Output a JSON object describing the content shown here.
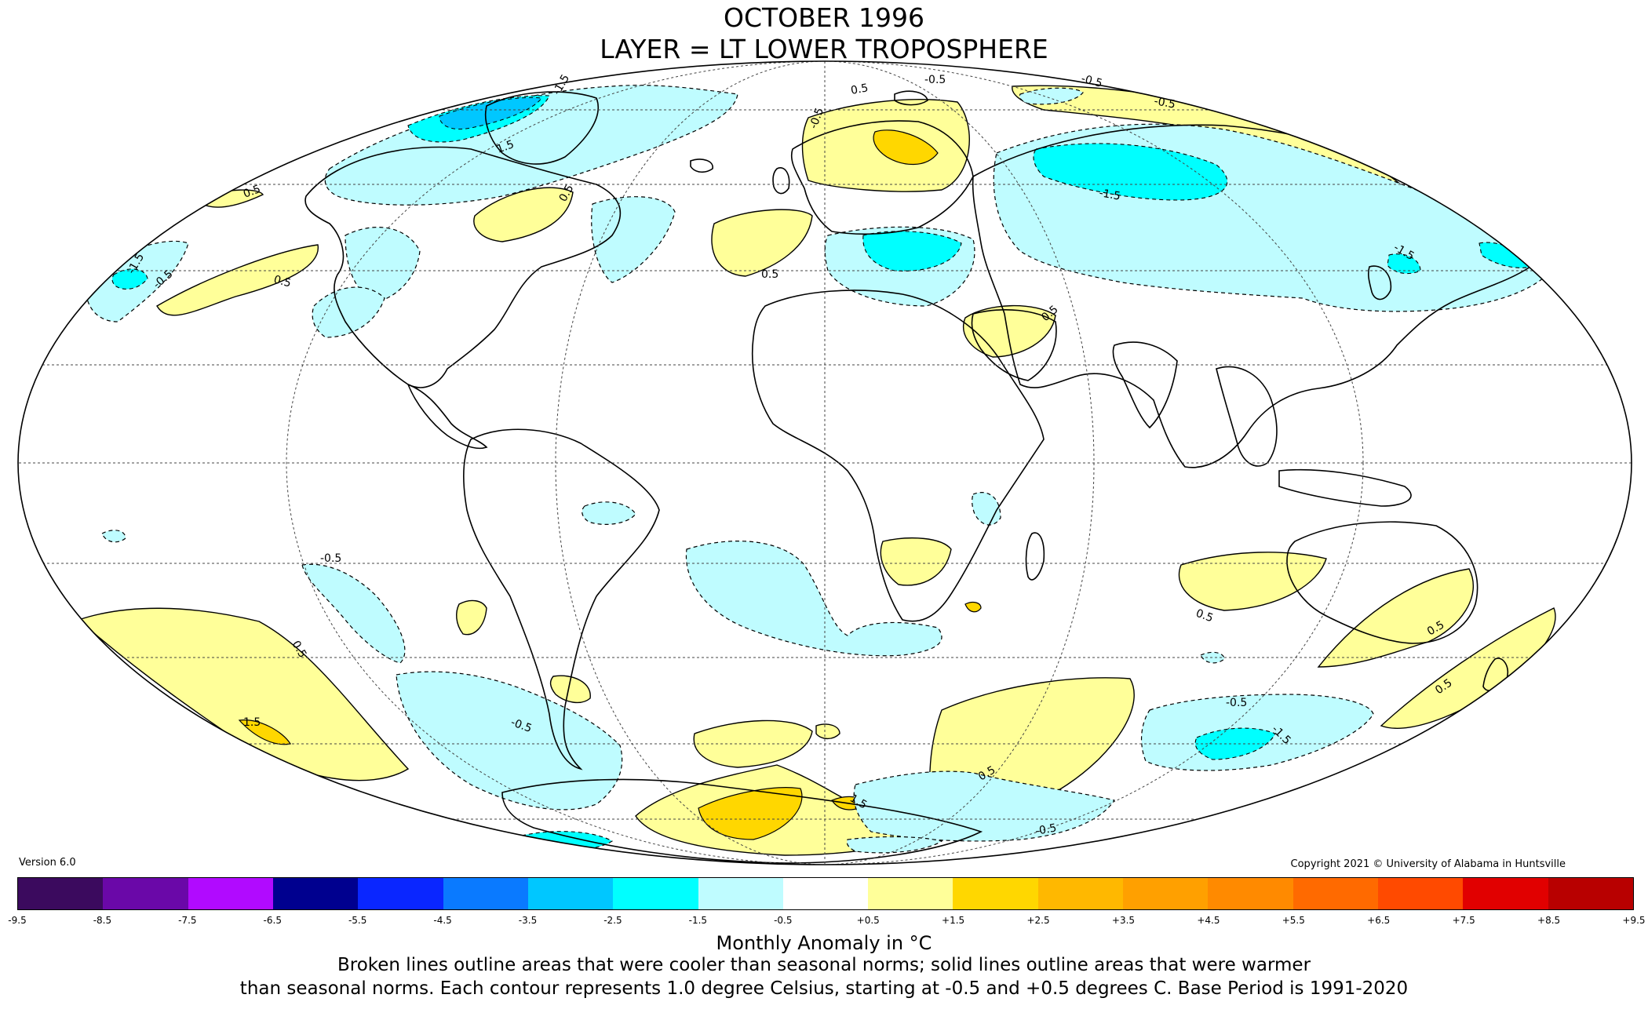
{
  "header": {
    "title": "OCTOBER 1996",
    "subtitle": "LAYER = LT LOWER TROPOSPHERE"
  },
  "footer": {
    "version": "Version 6.0",
    "copyright": "Copyright 2021 © University of Alabama in Huntsville",
    "colorbar_label": "Monthly Anomaly in °C",
    "caption_line1": "Broken lines outline areas that were cooler than seasonal norms; solid lines outline areas that were warmer",
    "caption_line2": "than seasonal norms. Each contour represents 1.0 degree Celsius, starting at -0.5 and +0.5 degrees C. Base Period is 1991-2020"
  },
  "colorbar": {
    "ticks": [
      "-9.5",
      "-8.5",
      "-7.5",
      "-6.5",
      "-5.5",
      "-4.5",
      "-3.5",
      "-2.5",
      "-1.5",
      "-0.5",
      "+0.5",
      "+1.5",
      "+2.5",
      "+3.5",
      "+4.5",
      "+5.5",
      "+6.5",
      "+7.5",
      "+8.5",
      "+9.5"
    ],
    "colors": [
      "#3b0a5e",
      "#6a08a8",
      "#b10aff",
      "#00008f",
      "#0a26ff",
      "#0a7aff",
      "#00c7ff",
      "#00ffff",
      "#bffcff",
      "#ffffff",
      "#ffff99",
      "#ffd700",
      "#ffb800",
      "#ffa000",
      "#ff8a00",
      "#ff6a00",
      "#ff4a00",
      "#e10000",
      "#b80000"
    ]
  },
  "map": {
    "contour_labels": [
      {
        "text": "0.5"
      },
      {
        "text": "-0.5"
      },
      {
        "text": "-1.5"
      },
      {
        "text": "1.5"
      },
      {
        "text": "-0.5"
      },
      {
        "text": "0.5"
      },
      {
        "text": "-1.5"
      },
      {
        "text": "-0.5"
      },
      {
        "text": "0.5"
      },
      {
        "text": "-0.5"
      },
      {
        "text": "0.5"
      },
      {
        "text": "0.5"
      },
      {
        "text": "-0.5"
      },
      {
        "text": "0.5"
      },
      {
        "text": "1.5"
      },
      {
        "text": "-0.5"
      },
      {
        "text": "0.5"
      },
      {
        "text": "-0.5"
      },
      {
        "text": "1.5"
      },
      {
        "text": "0.5"
      },
      {
        "text": "-0.5"
      },
      {
        "text": "-1.5"
      },
      {
        "text": "0.5"
      },
      {
        "text": "-1.5"
      },
      {
        "text": "0.5"
      },
      {
        "text": "0.5"
      },
      {
        "text": "-0.5"
      },
      {
        "text": "-1.5"
      }
    ]
  }
}
